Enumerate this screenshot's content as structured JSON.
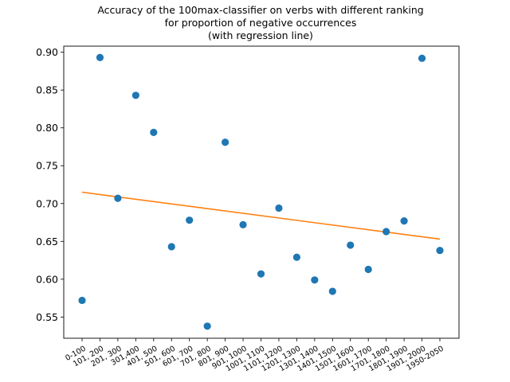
{
  "chart_data": {
    "type": "scatter",
    "title_lines": [
      "Accuracy of the 100max-classifier on verbs with different ranking",
      "for proportion of negative occurrences",
      "(with regression line)"
    ],
    "xlabel": "",
    "ylabel": "",
    "categories": [
      "0-100",
      "101, 200",
      "201, 300",
      "301,400",
      "401, 500",
      "501, 600",
      "601, 700",
      "701, 800",
      "801, 900",
      "901, 1000",
      "1001, 1100",
      "1101, 1200",
      "1201, 1300",
      "1301, 1400",
      "1401, 1500",
      "1501, 1600",
      "1601, 1700",
      "1701, 1800",
      "1801, 1900",
      "1901, 2000",
      "1950-2050"
    ],
    "values": [
      0.572,
      0.893,
      0.707,
      0.843,
      0.794,
      0.643,
      0.678,
      0.538,
      0.781,
      0.672,
      0.607,
      0.694,
      0.629,
      0.599,
      0.584,
      0.645,
      0.613,
      0.663,
      0.677,
      0.892,
      0.638
    ],
    "regression_line": {
      "start": 0.715,
      "end": 0.653
    },
    "ylim": [
      0.522,
      0.908
    ],
    "yticks": [
      0.55,
      0.6,
      0.65,
      0.7,
      0.75,
      0.8,
      0.85,
      0.9
    ],
    "ytick_labels": [
      "0.55",
      "0.60",
      "0.65",
      "0.70",
      "0.75",
      "0.80",
      "0.85",
      "0.90"
    ],
    "marker_color": "#1f77b4",
    "line_color": "#ff7f0e",
    "grid": false,
    "legend": "none"
  }
}
